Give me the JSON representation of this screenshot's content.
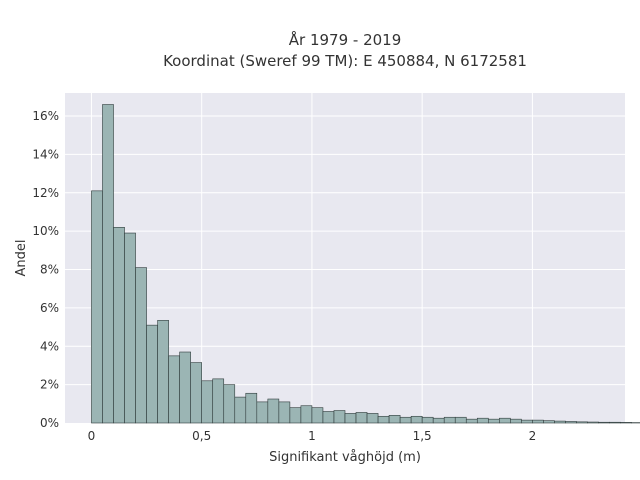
{
  "chart_data": {
    "type": "bar",
    "title_lines": [
      "År 1979 - 2019",
      "Koordinat (Sweref 99 TM): E 450884, N 6172581"
    ],
    "xlabel": "Signifikant våghöjd (m)",
    "ylabel": "Andel",
    "xlim": [
      -0.12,
      2.42
    ],
    "ylim": [
      0,
      17.2
    ],
    "x_ticks": [
      {
        "value": 0,
        "label": "0"
      },
      {
        "value": 0.5,
        "label": "0,5"
      },
      {
        "value": 1,
        "label": "1"
      },
      {
        "value": 1.5,
        "label": "1,5"
      },
      {
        "value": 2,
        "label": "2"
      }
    ],
    "y_ticks": [
      {
        "value": 0,
        "label": "0%"
      },
      {
        "value": 2,
        "label": "2%"
      },
      {
        "value": 4,
        "label": "4%"
      },
      {
        "value": 6,
        "label": "6%"
      },
      {
        "value": 8,
        "label": "8%"
      },
      {
        "value": 10,
        "label": "10%"
      },
      {
        "value": 12,
        "label": "12%"
      },
      {
        "value": 14,
        "label": "14%"
      },
      {
        "value": 16,
        "label": "16%"
      }
    ],
    "bin_start": 0.0,
    "bin_width": 0.05,
    "values": [
      12.1,
      16.6,
      10.2,
      9.9,
      8.1,
      5.1,
      5.35,
      3.5,
      3.7,
      3.15,
      2.2,
      2.3,
      2.0,
      1.35,
      1.55,
      1.1,
      1.25,
      1.1,
      0.8,
      0.9,
      0.8,
      0.6,
      0.65,
      0.5,
      0.55,
      0.5,
      0.35,
      0.4,
      0.3,
      0.35,
      0.3,
      0.25,
      0.3,
      0.3,
      0.2,
      0.25,
      0.2,
      0.25,
      0.2,
      0.15,
      0.15,
      0.12,
      0.1,
      0.08,
      0.06,
      0.05,
      0.04,
      0.04,
      0.03,
      0.02,
      0.01
    ],
    "grid": true,
    "legend": false,
    "colors": {
      "bar_fill": "#9bb5b4",
      "bar_stroke": "#2f3b3b",
      "plot_bg": "#e8e8f0",
      "grid": "#ffffff"
    }
  }
}
